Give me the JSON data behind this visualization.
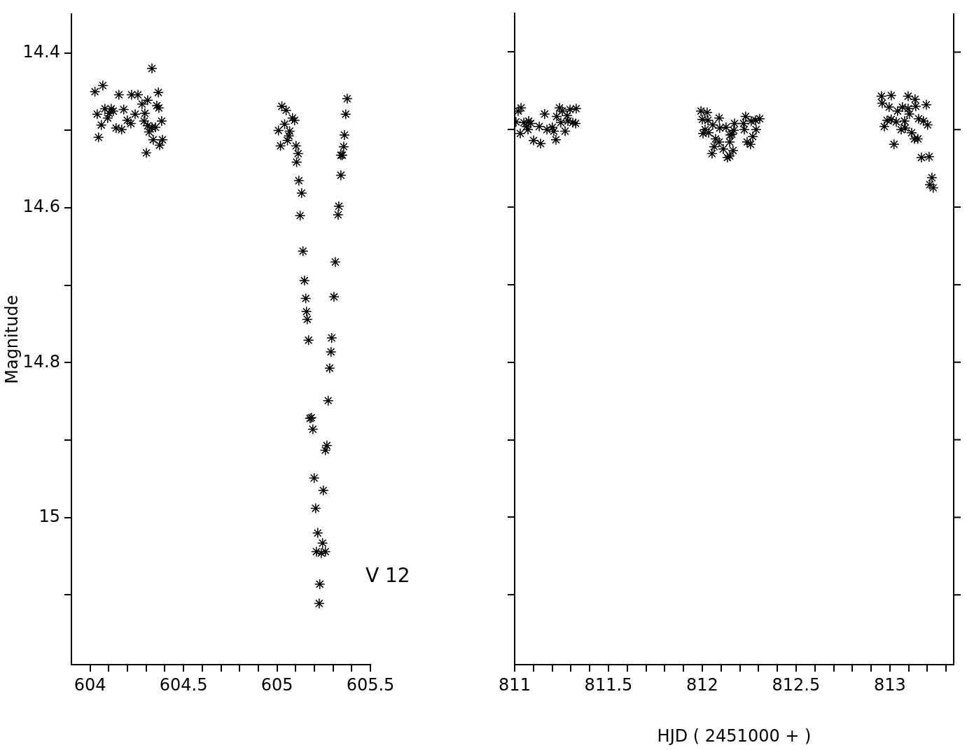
{
  "chart_data": [
    {
      "type": "scatter",
      "ylabel": "Magnitude",
      "annotations": [
        "V 12"
      ],
      "color": "#000000",
      "marker": "cross",
      "x": [
        604.026,
        604.068,
        604.154,
        604.222,
        604.256,
        604.331,
        604.365,
        604.308,
        604.278,
        604.357,
        604.368,
        604.079,
        604.113,
        604.038,
        604.102,
        604.124,
        604.18,
        604.241,
        604.293,
        604.094,
        604.199,
        604.218,
        604.06,
        604.139,
        604.169,
        604.289,
        604.383,
        604.308,
        604.331,
        604.35,
        604.316,
        604.045,
        604.338,
        604.387,
        604.372,
        604.301,
        605.026,
        605.049,
        605.083,
        605.094,
        605.041,
        605.008,
        605.068,
        605.064,
        605.019,
        605.056,
        605.102,
        605.113,
        605.105,
        605.117,
        605.132,
        605.124,
        605.139,
        605.147,
        605.154,
        605.158,
        605.162,
        605.169,
        605.177,
        605.184,
        605.192,
        605.199,
        605.207,
        605.211,
        605.218,
        605.229,
        605.226,
        605.237,
        605.244,
        605.259,
        605.248,
        605.259,
        605.267,
        605.274,
        605.282,
        605.289,
        605.293,
        605.305,
        605.312,
        605.327,
        605.331,
        605.342,
        605.342,
        605.35,
        605.357,
        605.361,
        605.368,
        605.376
      ],
      "values": [
        14.45,
        14.442,
        14.454,
        14.454,
        14.454,
        14.42,
        14.451,
        14.461,
        14.466,
        14.468,
        14.471,
        14.472,
        14.472,
        14.479,
        14.478,
        14.475,
        14.473,
        14.479,
        14.478,
        14.484,
        14.487,
        14.491,
        14.493,
        14.497,
        14.499,
        14.488,
        14.488,
        14.494,
        14.496,
        14.496,
        14.502,
        14.509,
        14.512,
        14.512,
        14.519,
        14.529,
        14.469,
        14.474,
        14.484,
        14.487,
        14.492,
        14.5,
        14.501,
        14.507,
        14.52,
        14.513,
        14.52,
        14.53,
        14.541,
        14.565,
        14.581,
        14.61,
        14.656,
        14.694,
        14.717,
        14.734,
        14.744,
        14.771,
        14.872,
        14.871,
        14.886,
        14.949,
        14.988,
        15.044,
        15.02,
        15.086,
        15.111,
        15.046,
        15.033,
        15.044,
        14.965,
        14.913,
        14.907,
        14.849,
        14.807,
        14.786,
        14.768,
        14.715,
        14.67,
        14.609,
        14.598,
        14.558,
        14.532,
        14.532,
        14.521,
        14.506,
        14.479,
        14.459
      ],
      "xlim": [
        603.9,
        605.5
      ],
      "xticks": [
        604,
        {
          "value": 604.1,
          "label": null
        },
        {
          "value": 604.2,
          "label": null
        },
        {
          "value": 604.3,
          "label": null
        },
        {
          "value": 604.4,
          "label": null
        },
        604.5,
        {
          "value": 604.6,
          "label": null
        },
        {
          "value": 604.7,
          "label": null
        },
        {
          "value": 604.8,
          "label": null
        },
        {
          "value": 604.9,
          "label": null
        },
        605,
        {
          "value": 605.1,
          "label": null
        },
        {
          "value": 605.2,
          "label": null
        },
        {
          "value": 605.3,
          "label": null
        },
        {
          "value": 605.4,
          "label": null
        },
        605.5
      ],
      "ylim": [
        15.19,
        14.35
      ],
      "yticks": [
        14.4,
        {
          "value": 14.5,
          "label": null
        },
        14.6,
        {
          "value": 14.7,
          "label": null
        },
        14.8,
        {
          "value": 14.9,
          "label": null
        },
        15,
        {
          "value": 15.1,
          "label": null
        }
      ]
    },
    {
      "type": "scatter",
      "xlabel": "HJD ( 2451000 + )",
      "color": "#000000",
      "tick_labels": "x",
      "marker": "cross",
      "x": [
        811.034,
        811.019,
        811.007,
        811.049,
        811.075,
        811.086,
        811.063,
        811.03,
        811.071,
        811.131,
        811.16,
        811.101,
        811.138,
        811.172,
        811.201,
        811.209,
        811.22,
        811.269,
        811.239,
        811.254,
        811.224,
        811.246,
        811.28,
        811.295,
        811.328,
        811.31,
        811.325,
        811.284,
        811.993,
        812.026,
        812.0,
        812.03,
        812.09,
        812.056,
        812.015,
        812.004,
        812.034,
        812.093,
        812.127,
        812.172,
        812.168,
        812.149,
        812.071,
        812.09,
        812.146,
        812.063,
        812.112,
        812.164,
        812.134,
        812.052,
        812.157,
        812.146,
        812.231,
        812.22,
        812.224,
        812.261,
        812.284,
        812.306,
        812.287,
        812.269,
        812.239,
        812.257,
        812.955,
        813.007,
        813.097,
        813.134,
        813.194,
        812.959,
        812.996,
        813.041,
        813.067,
        813.097,
        813.138,
        813.104,
        812.985,
        813.007,
        813.034,
        813.078,
        812.97,
        813.153,
        813.179,
        813.201,
        813.06,
        813.082,
        813.116,
        813.131,
        813.149,
        813.022,
        813.168,
        813.209,
        813.224,
        813.213,
        813.231
      ],
      "values": [
        14.472,
        14.476,
        14.49,
        14.491,
        14.489,
        14.492,
        14.496,
        14.505,
        14.5,
        14.496,
        14.48,
        14.514,
        14.518,
        14.5,
        14.497,
        14.502,
        14.513,
        14.502,
        14.472,
        14.476,
        14.483,
        14.491,
        14.482,
        14.474,
        14.473,
        14.491,
        14.492,
        14.489,
        14.476,
        14.478,
        14.487,
        14.488,
        14.485,
        14.494,
        14.5,
        14.505,
        14.504,
        14.498,
        14.497,
        14.492,
        14.501,
        14.507,
        14.512,
        14.516,
        14.516,
        14.522,
        14.525,
        14.527,
        14.536,
        14.531,
        14.506,
        14.534,
        14.483,
        14.492,
        14.5,
        14.489,
        14.488,
        14.486,
        14.5,
        14.509,
        14.516,
        14.519,
        14.457,
        14.456,
        14.457,
        14.461,
        14.468,
        14.466,
        14.471,
        14.476,
        14.471,
        14.473,
        14.47,
        14.48,
        14.488,
        14.487,
        14.49,
        14.489,
        14.496,
        14.486,
        14.489,
        14.494,
        14.5,
        14.498,
        14.504,
        14.512,
        14.512,
        14.519,
        14.536,
        14.535,
        14.562,
        14.571,
        14.575
      ],
      "xlim": [
        811,
        813.34
      ],
      "xticks": [
        811,
        {
          "value": 811.1,
          "label": null
        },
        {
          "value": 811.2,
          "label": null
        },
        {
          "value": 811.3,
          "label": null
        },
        {
          "value": 811.4,
          "label": null
        },
        811.5,
        {
          "value": 811.6,
          "label": null
        },
        {
          "value": 811.7,
          "label": null
        },
        {
          "value": 811.8,
          "label": null
        },
        {
          "value": 811.9,
          "label": null
        },
        812,
        {
          "value": 812.1,
          "label": null
        },
        {
          "value": 812.2,
          "label": null
        },
        {
          "value": 812.3,
          "label": null
        },
        {
          "value": 812.4,
          "label": null
        },
        812.5,
        {
          "value": 812.6,
          "label": null
        },
        {
          "value": 812.7,
          "label": null
        },
        {
          "value": 812.8,
          "label": null
        },
        {
          "value": 812.9,
          "label": null
        },
        813,
        {
          "value": 813.1,
          "label": null
        },
        {
          "value": 813.2,
          "label": null
        },
        {
          "value": 813.3,
          "label": null
        }
      ],
      "ylim": [
        15.19,
        14.35
      ],
      "yticks": [
        14.4,
        {
          "value": 14.5,
          "label": null
        },
        14.6,
        {
          "value": 14.7,
          "label": null
        },
        14.8,
        {
          "value": 14.9,
          "label": null
        },
        15,
        {
          "value": 15.1,
          "label": null
        }
      ]
    }
  ]
}
